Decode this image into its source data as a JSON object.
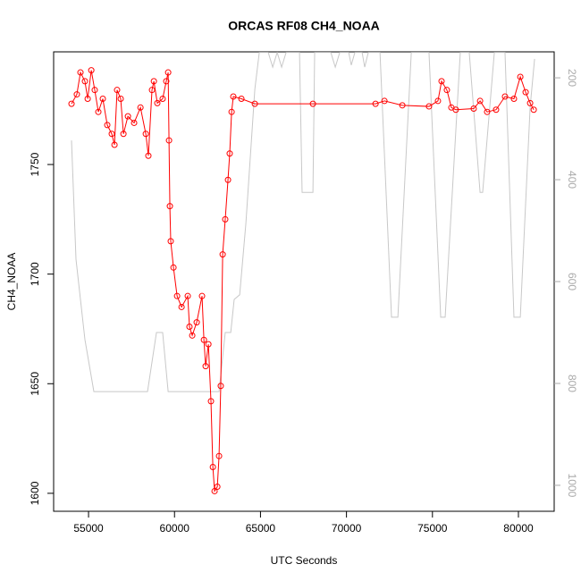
{
  "chart_data": {
    "type": "line",
    "title": "ORCAS RF08 CH4_NOAA",
    "x_label": "UTC Seconds",
    "y_label": "CH4_NOAA",
    "xlim": [
      52970,
      82080
    ],
    "xticks": [
      55000,
      60000,
      65000,
      70000,
      75000,
      80000
    ],
    "ylim": [
      1591.8,
      1801.4
    ],
    "yticks": [
      1600,
      1650,
      1700,
      1750
    ],
    "y2lim": [
      1051,
      149
    ],
    "y2ticks": [
      200,
      400,
      600,
      800,
      1000
    ],
    "series": [
      {
        "color": "#ff0000",
        "markers": "circle",
        "x": [
          54010,
          54320,
          54530,
          54790,
          54950,
          55160,
          55360,
          55570,
          55830,
          56090,
          56350,
          56510,
          56660,
          56870,
          57030,
          57290,
          57650,
          58020,
          58330,
          58480,
          58690,
          58800,
          59000,
          59310,
          59520,
          59630,
          59680,
          59730,
          59780,
          59940,
          60150,
          60410,
          60770,
          60870,
          61030,
          61290,
          61600,
          61710,
          61810,
          61970,
          62120,
          62230,
          62330,
          62490,
          62590,
          62690,
          62800,
          62950,
          63110,
          63210,
          63320,
          63420,
          63890,
          64670,
          68050,
          71690,
          72210,
          73250,
          74800,
          75320,
          75530,
          75840,
          76100,
          76360,
          77400,
          77770,
          78180,
          78700,
          79220,
          79740,
          80110,
          80420,
          80680,
          80890
        ],
        "values": [
          1777.7,
          1782,
          1792,
          1788,
          1780,
          1793,
          1784,
          1774,
          1780,
          1768,
          1764,
          1759,
          1784,
          1780,
          1764,
          1772,
          1769,
          1776,
          1764,
          1754,
          1784,
          1788,
          1778,
          1780,
          1788,
          1792,
          1761,
          1731,
          1715,
          1703,
          1690,
          1685,
          1690,
          1676,
          1672,
          1678,
          1690,
          1670,
          1658,
          1668,
          1642,
          1612,
          1601,
          1603,
          1617,
          1649,
          1709,
          1725,
          1743,
          1755,
          1774,
          1781,
          1780,
          1777.7,
          1777.7,
          1777.7,
          1779,
          1777,
          1776.5,
          1779,
          1788,
          1784,
          1776,
          1775,
          1775.5,
          1779,
          1774,
          1775,
          1781,
          1780,
          1790,
          1783,
          1778,
          1775
        ]
      },
      {
        "color": "#c8c8c8",
        "axis": "y2",
        "x": [
          54010,
          54270,
          54790,
          55310,
          58430,
          58950,
          59310,
          59630,
          62590,
          62950,
          63270,
          63470,
          63790,
          64150,
          64670,
          64930,
          65450,
          65710,
          65970,
          66230,
          66490,
          67270,
          67420,
          68050,
          68150,
          69090,
          69350,
          69610,
          70130,
          70280,
          70490,
          70910,
          71060,
          71270,
          71950,
          72620,
          72990,
          73770,
          74800,
          75480,
          75740,
          76620,
          77140,
          77770,
          77920,
          78600,
          79220,
          79740,
          80110,
          80680,
          80940
        ],
        "values": [
          323,
          556,
          714,
          816,
          816,
          700,
          700,
          816,
          816,
          700,
          700,
          635,
          626,
          486,
          223,
          150,
          150,
          179,
          150,
          179,
          150,
          150,
          425,
          425,
          150,
          150,
          179,
          150,
          150,
          175,
          150,
          150,
          179,
          150,
          150,
          670,
          670,
          150,
          150,
          670,
          670,
          150,
          150,
          425,
          425,
          150,
          150,
          670,
          670,
          258,
          163
        ]
      }
    ]
  }
}
